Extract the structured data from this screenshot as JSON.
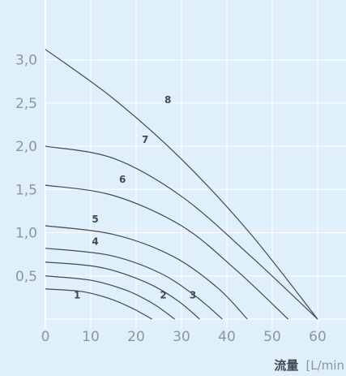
{
  "chart_data": {
    "type": "line",
    "title": "",
    "xlabel": "流量",
    "xlabel_unit": "[L/min",
    "ylabel": "",
    "xlim": [
      0,
      60
    ],
    "ylim": [
      0,
      3.3
    ],
    "grid": true,
    "x_ticks": [
      "0",
      "10",
      "20",
      "30",
      "40",
      "50",
      "60"
    ],
    "y_ticks": [
      "0,5",
      "1,0",
      "1,5",
      "2,0",
      "2,5",
      "3,0"
    ],
    "series": [
      {
        "name": "1",
        "points": [
          [
            0,
            0.35
          ],
          [
            8,
            0.32
          ],
          [
            14,
            0.24
          ],
          [
            19,
            0.13
          ],
          [
            23.5,
            0
          ]
        ]
      },
      {
        "name": "2",
        "points": [
          [
            0,
            0.5
          ],
          [
            10,
            0.45
          ],
          [
            18,
            0.33
          ],
          [
            24,
            0.17
          ],
          [
            28.5,
            0
          ]
        ]
      },
      {
        "name": "3",
        "points": [
          [
            0,
            0.66
          ],
          [
            12,
            0.6
          ],
          [
            22,
            0.43
          ],
          [
            29,
            0.22
          ],
          [
            34,
            0
          ]
        ]
      },
      {
        "name": "4",
        "points": [
          [
            0,
            0.82
          ],
          [
            14,
            0.74
          ],
          [
            25,
            0.54
          ],
          [
            33,
            0.27
          ],
          [
            39,
            0
          ]
        ]
      },
      {
        "name": "5",
        "points": [
          [
            0,
            1.08
          ],
          [
            15,
            0.98
          ],
          [
            28,
            0.73
          ],
          [
            38,
            0.36
          ],
          [
            44.5,
            0
          ]
        ]
      },
      {
        "name": "6",
        "points": [
          [
            0,
            1.55
          ],
          [
            15,
            1.43
          ],
          [
            30,
            1.08
          ],
          [
            42,
            0.57
          ],
          [
            53.5,
            0
          ]
        ]
      },
      {
        "name": "7",
        "points": [
          [
            0,
            2.0
          ],
          [
            15,
            1.86
          ],
          [
            30,
            1.42
          ],
          [
            45,
            0.74
          ],
          [
            60,
            0
          ]
        ]
      },
      {
        "name": "8",
        "points": [
          [
            0,
            3.12
          ],
          [
            15,
            2.55
          ],
          [
            30,
            1.85
          ],
          [
            45,
            1.0
          ],
          [
            60,
            0
          ]
        ]
      }
    ],
    "curve_labels": [
      {
        "text": "1",
        "x": 7,
        "y": 0.2
      },
      {
        "text": "2",
        "x": 26,
        "y": 0.2
      },
      {
        "text": "3",
        "x": 32.5,
        "y": 0.2
      },
      {
        "text": "4",
        "x": 11,
        "y": 0.82
      },
      {
        "text": "5",
        "x": 11,
        "y": 1.08
      },
      {
        "text": "6",
        "x": 17,
        "y": 1.54
      },
      {
        "text": "7",
        "x": 22,
        "y": 2.0
      },
      {
        "text": "8",
        "x": 27,
        "y": 2.46
      }
    ],
    "colors": {
      "background": "#dff0fb",
      "grid": "#ffffff",
      "curve": "#3f4a52",
      "tick_label": "#8a96a0"
    }
  }
}
